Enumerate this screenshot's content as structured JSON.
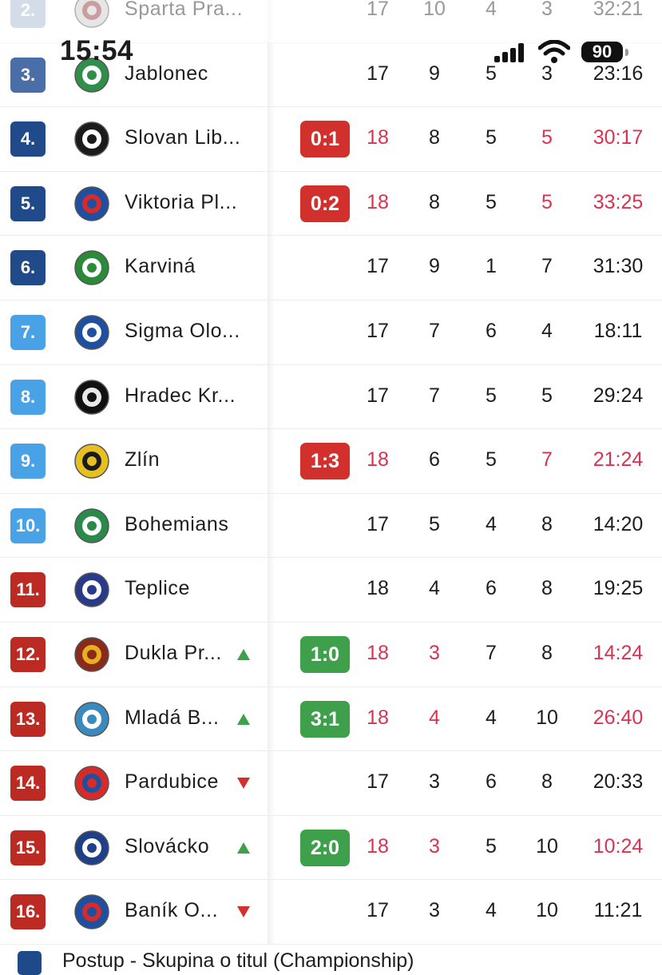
{
  "status_bar": {
    "time": "15:54",
    "battery": "90"
  },
  "colors": {
    "rank_dark_blue": "#214a8a",
    "rank_light_blue": "#4aa2e6",
    "rank_red": "#bb2a23",
    "rank_grey_blue": "#9fb3cf",
    "rank_mid_blue": "#4a6ea8",
    "live_text": "#d9344f",
    "score_loss": "#d2302c",
    "score_win": "#3ea04a",
    "trend_up": "#3ea04a",
    "trend_down": "#d2302c"
  },
  "rows": [
    {
      "rank": "2.",
      "team": "Sparta Pra...",
      "crest": "sparta-crest-icon",
      "trend": "",
      "score": "",
      "score_type": "",
      "p": "17",
      "w": "10",
      "d": "4",
      "l": "3",
      "goals": "32:21",
      "live": false,
      "rank_color": "#9fb3cf",
      "faded": true
    },
    {
      "rank": "3.",
      "team": "Jablonec",
      "crest": "jablonec-crest-icon",
      "trend": "",
      "score": "",
      "score_type": "",
      "p": "17",
      "w": "9",
      "d": "5",
      "l": "3",
      "goals": "23:16",
      "live": false,
      "rank_color": "#4a6ea8",
      "faded": false
    },
    {
      "rank": "4.",
      "team": "Slovan Lib...",
      "crest": "slovan-liberec-crest-icon",
      "trend": "",
      "score": "0:1",
      "score_type": "loss",
      "p": "18",
      "w": "8",
      "d": "5",
      "l": "5",
      "goals": "30:17",
      "live": true,
      "rank_color": "#214a8a",
      "faded": false
    },
    {
      "rank": "5.",
      "team": "Viktoria Pl...",
      "crest": "viktoria-plzen-crest-icon",
      "trend": "",
      "score": "0:2",
      "score_type": "loss",
      "p": "18",
      "w": "8",
      "d": "5",
      "l": "5",
      "goals": "33:25",
      "live": true,
      "rank_color": "#214a8a",
      "faded": false
    },
    {
      "rank": "6.",
      "team": "Karviná",
      "crest": "karvina-crest-icon",
      "trend": "",
      "score": "",
      "score_type": "",
      "p": "17",
      "w": "9",
      "d": "1",
      "l": "7",
      "goals": "31:30",
      "live": false,
      "rank_color": "#214a8a",
      "faded": false
    },
    {
      "rank": "7.",
      "team": "Sigma Olo...",
      "crest": "sigma-olomouc-crest-icon",
      "trend": "",
      "score": "",
      "score_type": "",
      "p": "17",
      "w": "7",
      "d": "6",
      "l": "4",
      "goals": "18:11",
      "live": false,
      "rank_color": "#4aa2e6",
      "faded": false
    },
    {
      "rank": "8.",
      "team": "Hradec Kr...",
      "crest": "hradec-kralove-crest-icon",
      "trend": "",
      "score": "",
      "score_type": "",
      "p": "17",
      "w": "7",
      "d": "5",
      "l": "5",
      "goals": "29:24",
      "live": false,
      "rank_color": "#4aa2e6",
      "faded": false
    },
    {
      "rank": "9.",
      "team": "Zlín",
      "crest": "zlin-crest-icon",
      "trend": "",
      "score": "1:3",
      "score_type": "loss",
      "p": "18",
      "w": "6",
      "d": "5",
      "l": "7",
      "goals": "21:24",
      "live": true,
      "rank_color": "#4aa2e6",
      "faded": false
    },
    {
      "rank": "10.",
      "team": "Bohemians",
      "crest": "bohemians-crest-icon",
      "trend": "",
      "score": "",
      "score_type": "",
      "p": "17",
      "w": "5",
      "d": "4",
      "l": "8",
      "goals": "14:20",
      "live": false,
      "rank_color": "#4aa2e6",
      "faded": false
    },
    {
      "rank": "11.",
      "team": "Teplice",
      "crest": "teplice-crest-icon",
      "trend": "",
      "score": "",
      "score_type": "",
      "p": "18",
      "w": "4",
      "d": "6",
      "l": "8",
      "goals": "19:25",
      "live": false,
      "rank_color": "#bb2a23",
      "faded": false
    },
    {
      "rank": "12.",
      "team": "Dukla Pr...",
      "crest": "dukla-praha-crest-icon",
      "trend": "up",
      "score": "1:0",
      "score_type": "win",
      "p": "18",
      "w": "3",
      "d": "7",
      "l": "8",
      "goals": "14:24",
      "live": true,
      "rank_color": "#bb2a23",
      "faded": false
    },
    {
      "rank": "13.",
      "team": "Mladá B...",
      "crest": "mlada-boleslav-crest-icon",
      "trend": "up",
      "score": "3:1",
      "score_type": "win",
      "p": "18",
      "w": "4",
      "d": "4",
      "l": "10",
      "goals": "26:40",
      "live": true,
      "rank_color": "#bb2a23",
      "faded": false
    },
    {
      "rank": "14.",
      "team": "Pardubice",
      "crest": "pardubice-crest-icon",
      "trend": "down",
      "score": "",
      "score_type": "",
      "p": "17",
      "w": "3",
      "d": "6",
      "l": "8",
      "goals": "20:33",
      "live": false,
      "rank_color": "#bb2a23",
      "faded": false
    },
    {
      "rank": "15.",
      "team": "Slovácko",
      "crest": "slovacko-crest-icon",
      "trend": "up",
      "score": "2:0",
      "score_type": "win",
      "p": "18",
      "w": "3",
      "d": "5",
      "l": "10",
      "goals": "10:24",
      "live": true,
      "rank_color": "#bb2a23",
      "faded": false
    },
    {
      "rank": "16.",
      "team": "Baník O...",
      "crest": "banik-ostrava-crest-icon",
      "trend": "down",
      "score": "",
      "score_type": "",
      "p": "17",
      "w": "3",
      "d": "4",
      "l": "10",
      "goals": "11:21",
      "live": false,
      "rank_color": "#bb2a23",
      "faded": false
    }
  ],
  "footer": {
    "legend_text": "Postup - Skupina o titul (Championship)"
  }
}
